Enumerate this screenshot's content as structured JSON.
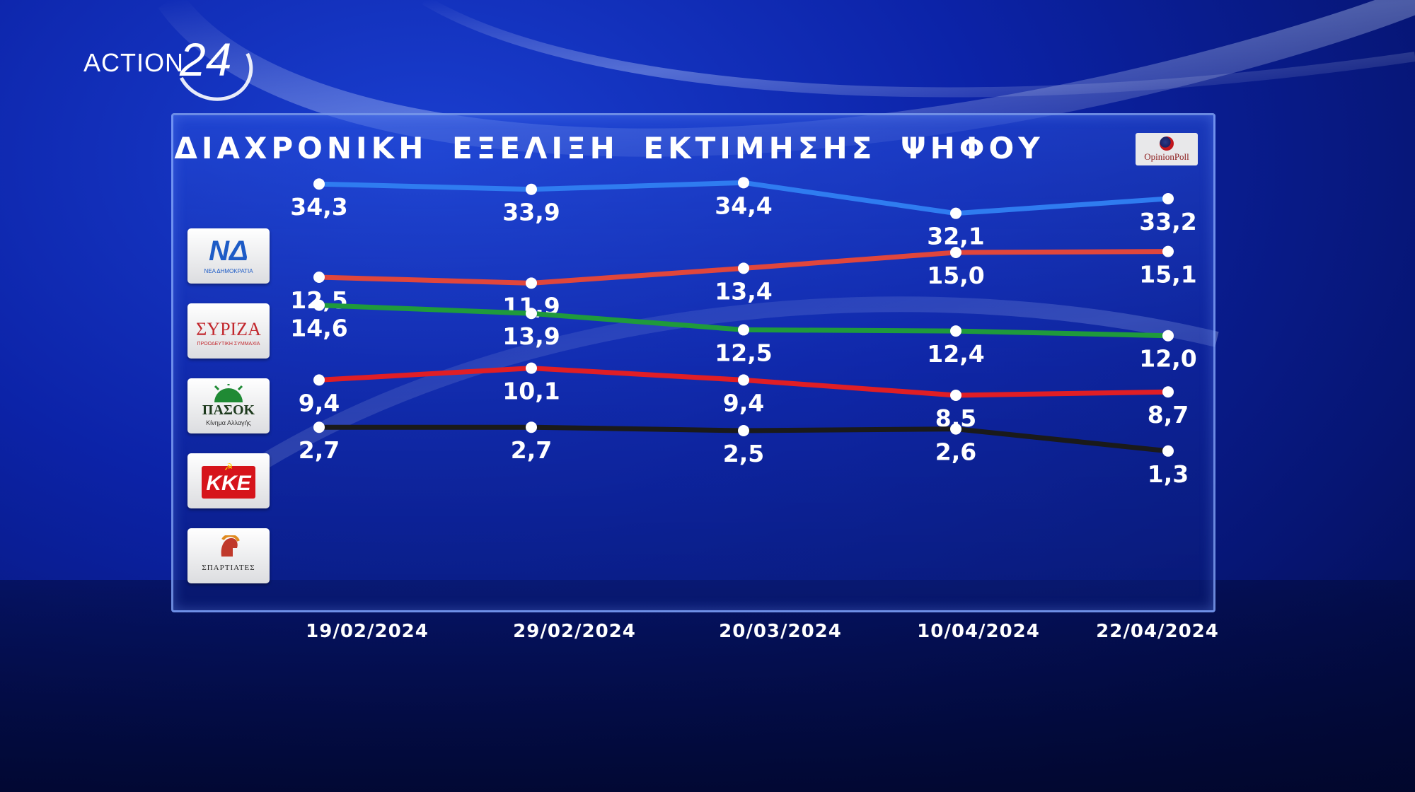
{
  "brand": {
    "name": "ACTION",
    "number": "24"
  },
  "header": {
    "title": "ΔΙΑΧΡΟΝΙΚΗ ΕΞΕΛΙΞΗ ΕΚΤΙΜΗΣΗΣ ΨΗΦΟΥ"
  },
  "pollster": {
    "label": "OpinionPoll"
  },
  "parties": [
    {
      "logo_text": "ΝΔ",
      "logo_sub": "ΝΕΑ ΔΗΜΟΚΡΑΤΙΑ"
    },
    {
      "logo_text": "ΣΥΡΙΖΑ",
      "logo_sub": "ΠΡΟΟΔΕΥΤΙΚΗ ΣΥΜΜΑΧΙΑ"
    },
    {
      "logo_text": "ΠΑΣΟΚ",
      "logo_sub": "Κίνημα Αλλαγής"
    },
    {
      "logo_text": "ΚΚΕ",
      "logo_sub": ""
    },
    {
      "logo_text": "ΣΠΑΡΤΙΑΤΕΣ",
      "logo_sub": ""
    }
  ],
  "colors": {
    "nd": "#2f7cf0",
    "syriza": "#e0463c",
    "pasok": "#1f9a3c",
    "kke": "#e01e25",
    "spartiates": "#1a1a1a"
  },
  "chart_data": {
    "type": "line",
    "title": "ΔΙΑΧΡΟΝΙΚΗ ΕΞΕΛΙΞΗ ΕΚΤΙΜΗΣΗΣ ΨΗΦΟΥ",
    "x": [
      "19/02/2024",
      "29/02/2024",
      "20/03/2024",
      "10/04/2024",
      "22/04/2024"
    ],
    "series": [
      {
        "name": "ΝΔ",
        "color": "#2f7cf0",
        "values": [
          34.3,
          33.9,
          34.4,
          32.1,
          33.2
        ],
        "labels": [
          "34,3",
          "33,9",
          "34,4",
          "32,1",
          "33,2"
        ]
      },
      {
        "name": "ΣΥΡΙΖΑ",
        "color": "#e0463c",
        "values": [
          12.5,
          11.9,
          13.4,
          15.0,
          15.1
        ],
        "labels": [
          "12,5",
          "11,9",
          "13,4",
          "15,0",
          "15,1"
        ]
      },
      {
        "name": "ΠΑΣΟΚ",
        "color": "#1f9a3c",
        "values": [
          14.6,
          13.9,
          12.5,
          12.4,
          12.0
        ],
        "labels": [
          "14,6",
          "13,9",
          "12,5",
          "12,4",
          "12,0"
        ]
      },
      {
        "name": "ΚΚΕ",
        "color": "#e01e25",
        "values": [
          9.4,
          10.1,
          9.4,
          8.5,
          8.7
        ],
        "labels": [
          "9,4",
          "10,1",
          "9,4",
          "8,5",
          "8,7"
        ]
      },
      {
        "name": "ΣΠΑΡΤΙΑΤΕΣ",
        "color": "#1a1a1a",
        "values": [
          2.7,
          2.7,
          2.5,
          2.6,
          1.3
        ],
        "labels": [
          "2,7",
          "2,7",
          "2,5",
          "2,6",
          "1,3"
        ]
      }
    ]
  }
}
